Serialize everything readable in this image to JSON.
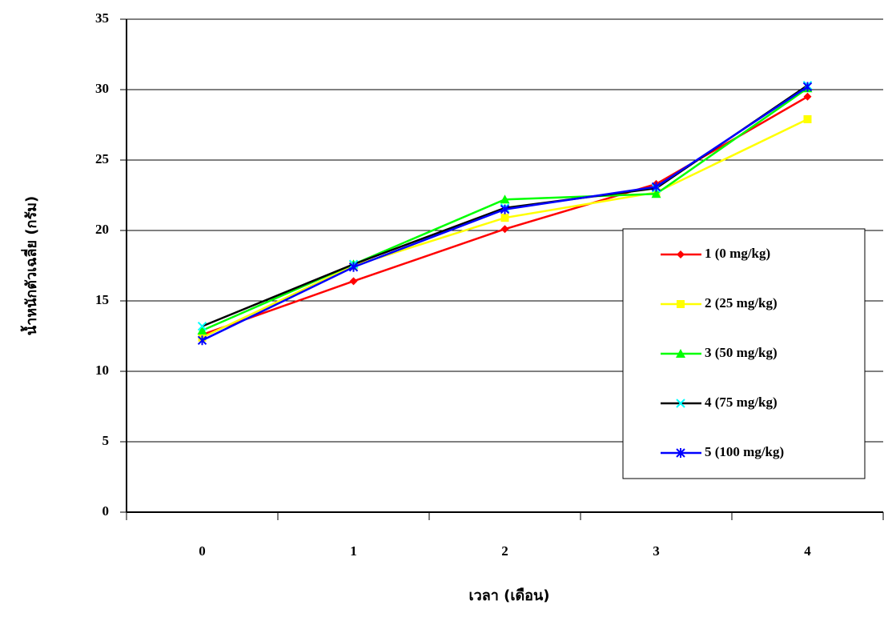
{
  "chart_data": {
    "type": "line",
    "x_label": "เวลา (เดือน)",
    "y_label": "น้ำหนักตัวเฉลี่ย (กรัม)",
    "categories": [
      "0",
      "1",
      "2",
      "3",
      "4"
    ],
    "ylim": [
      0,
      35
    ],
    "yticks": [
      0,
      5,
      10,
      15,
      20,
      25,
      30,
      35
    ],
    "grid": true,
    "legend": "right",
    "series": [
      {
        "name": "1 (0 mg/kg)",
        "color": "#ff0000",
        "marker": "diamond",
        "values": [
          12.6,
          16.4,
          20.1,
          23.3,
          29.5
        ]
      },
      {
        "name": "2 (25 mg/kg)",
        "color": "#ffff00",
        "marker": "square",
        "values": [
          12.4,
          17.5,
          20.9,
          22.7,
          27.9
        ]
      },
      {
        "name": "3 (50 mg/kg)",
        "color": "#00ff00",
        "marker": "triangle",
        "values": [
          12.9,
          17.6,
          22.2,
          22.6,
          30.1
        ]
      },
      {
        "name": "4 (75 mg/kg)",
        "color": "#000000",
        "marker_color": "#00ffff",
        "marker": "x",
        "values": [
          13.2,
          17.6,
          21.6,
          23.0,
          30.3
        ]
      },
      {
        "name": "5 (100 mg/kg)",
        "color": "#0000ff",
        "marker": "star",
        "values": [
          12.2,
          17.4,
          21.5,
          23.1,
          30.2
        ]
      }
    ]
  }
}
